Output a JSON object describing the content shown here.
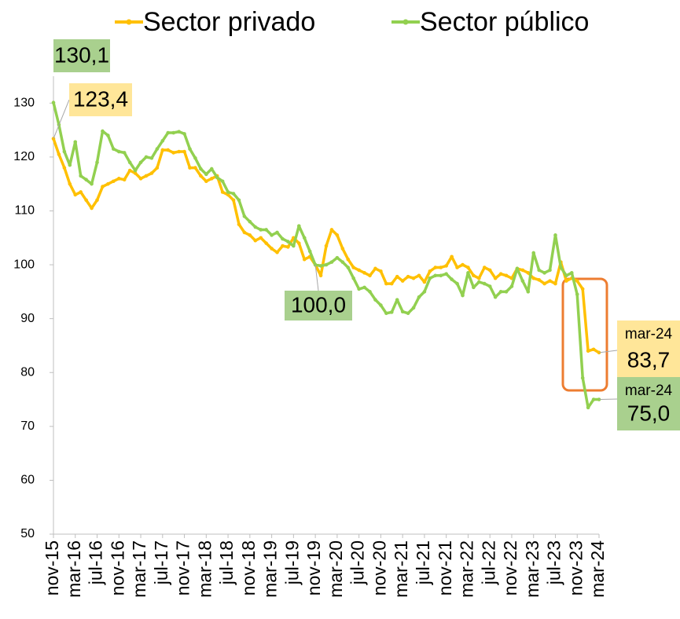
{
  "chart_data": {
    "type": "line",
    "categories": [
      "nov-15",
      null,
      null,
      null,
      "mar-16",
      null,
      null,
      null,
      "jul-16",
      null,
      null,
      null,
      "nov-16",
      null,
      null,
      null,
      "mar-17",
      null,
      null,
      null,
      "jul-17",
      null,
      null,
      null,
      "nov-17",
      null,
      null,
      null,
      "mar-18",
      null,
      null,
      null,
      "jul-18",
      null,
      null,
      null,
      "nov-18",
      null,
      null,
      null,
      "mar-19",
      null,
      null,
      null,
      "jul-19",
      null,
      null,
      null,
      "nov-19",
      null,
      null,
      null,
      "mar-20",
      null,
      null,
      null,
      "jul-20",
      null,
      null,
      null,
      "nov-20",
      null,
      null,
      null,
      "mar-21",
      null,
      null,
      null,
      "jul-21",
      null,
      null,
      null,
      "nov-21",
      null,
      null,
      null,
      "mar-22",
      null,
      null,
      null,
      "jul-22",
      null,
      null,
      null,
      "nov-22",
      null,
      null,
      null,
      "mar-23",
      null,
      null,
      null,
      "jul-23",
      null,
      null,
      null,
      "nov-23",
      null,
      null,
      null,
      "mar-24"
    ],
    "series": [
      {
        "name": "Sector privado",
        "color": "#ffc000",
        "values": [
          123.4,
          120.5,
          118,
          115,
          113,
          113.5,
          112,
          110.5,
          112,
          114.5,
          115,
          115.5,
          116,
          115.8,
          117.5,
          117,
          116,
          116.5,
          117,
          118,
          121.3,
          121.3,
          120.8,
          121,
          121,
          118,
          118,
          116.5,
          115.5,
          116,
          116.5,
          113.5,
          113,
          112,
          107.5,
          106,
          105.5,
          104.5,
          105,
          104,
          103,
          102.3,
          103.5,
          103.3,
          105,
          104,
          101,
          101.5,
          100,
          98,
          103.5,
          106.5,
          105.5,
          103,
          101,
          99.5,
          99,
          98.5,
          98,
          99.3,
          98.8,
          96.5,
          96.5,
          97.8,
          97,
          97.8,
          97.5,
          98,
          96.8,
          98.8,
          99.5,
          99.5,
          99.8,
          101.5,
          99.5,
          100,
          99.5,
          98,
          97.5,
          99.5,
          99,
          97.5,
          98.3,
          98,
          97.5,
          99.3,
          99,
          98.5,
          97.5,
          97.2,
          96.5,
          97,
          96.5,
          100.5,
          97,
          97.5,
          97,
          95.5,
          84,
          84.3,
          83.7
        ],
        "value_labels": [
          "123,4",
          null,
          null,
          null,
          null,
          null,
          null,
          null,
          null,
          null,
          null,
          null,
          null,
          null,
          null,
          null,
          null,
          null,
          null,
          null,
          null,
          null,
          null,
          null,
          null,
          null,
          null,
          null,
          null,
          null,
          null,
          null,
          null,
          null,
          null,
          null,
          null,
          null,
          null,
          null,
          null,
          null,
          null,
          null,
          null,
          null,
          null,
          null,
          null,
          null,
          null,
          null,
          null,
          null,
          null,
          null,
          null,
          null,
          null,
          null,
          null,
          null,
          null,
          null,
          null,
          null,
          null,
          null,
          null,
          null,
          null,
          null,
          null,
          null,
          null,
          null,
          null,
          null,
          null,
          null,
          null,
          null,
          null,
          null,
          null,
          null,
          null,
          null,
          null,
          null,
          null,
          null,
          null,
          null,
          null,
          null,
          null,
          null,
          null,
          null,
          "83,7"
        ]
      },
      {
        "name": "Sector público",
        "color": "#92d050",
        "values": [
          130.1,
          126,
          121,
          118.5,
          122.8,
          116.5,
          115.8,
          115,
          119,
          124.8,
          124,
          121.5,
          121,
          120.8,
          119,
          117.5,
          119,
          120,
          119.8,
          121.5,
          123,
          124.5,
          124.5,
          124.7,
          124.3,
          121.5,
          119.8,
          117.8,
          116.8,
          117.8,
          116.2,
          115.5,
          113.5,
          113.2,
          112,
          109,
          108,
          107,
          106.5,
          106.5,
          105.5,
          106,
          104.8,
          104.3,
          103.5,
          107.2,
          105,
          102.5,
          100,
          99.8,
          100,
          100.5,
          101.3,
          100.5,
          99.5,
          97.5,
          95.5,
          95.8,
          95,
          93.5,
          92.5,
          91,
          91.2,
          93.5,
          91.3,
          91,
          92,
          94,
          95,
          97.5,
          98,
          98,
          98.3,
          97.3,
          96.5,
          94.3,
          98.5,
          95.8,
          96.8,
          96.5,
          96,
          94,
          95,
          95,
          96,
          99.3,
          97,
          95,
          102.2,
          99,
          98.5,
          99,
          105.5,
          99.5,
          98,
          98.5,
          94.5,
          79,
          73.5,
          75,
          75
        ],
        "value_labels": [
          "130,1",
          null,
          null,
          null,
          null,
          null,
          null,
          null,
          null,
          null,
          null,
          null,
          null,
          null,
          null,
          null,
          null,
          null,
          null,
          null,
          null,
          null,
          null,
          null,
          null,
          null,
          null,
          null,
          null,
          null,
          null,
          null,
          null,
          null,
          null,
          null,
          null,
          null,
          null,
          null,
          null,
          null,
          null,
          null,
          null,
          null,
          null,
          null,
          "100,0",
          null,
          null,
          null,
          null,
          null,
          null,
          null,
          null,
          null,
          null,
          null,
          null,
          null,
          null,
          null,
          null,
          null,
          null,
          null,
          null,
          null,
          null,
          null,
          null,
          null,
          null,
          null,
          null,
          null,
          null,
          null,
          null,
          null,
          null,
          null,
          null,
          null,
          null,
          null,
          null,
          null,
          null,
          null,
          null,
          null,
          null,
          null,
          null,
          null,
          null,
          null,
          "75,0"
        ]
      }
    ],
    "ylim": [
      50,
      135
    ],
    "yticks": [
      50,
      60,
      70,
      80,
      90,
      100,
      110,
      120,
      130
    ],
    "legend": "top"
  }
}
